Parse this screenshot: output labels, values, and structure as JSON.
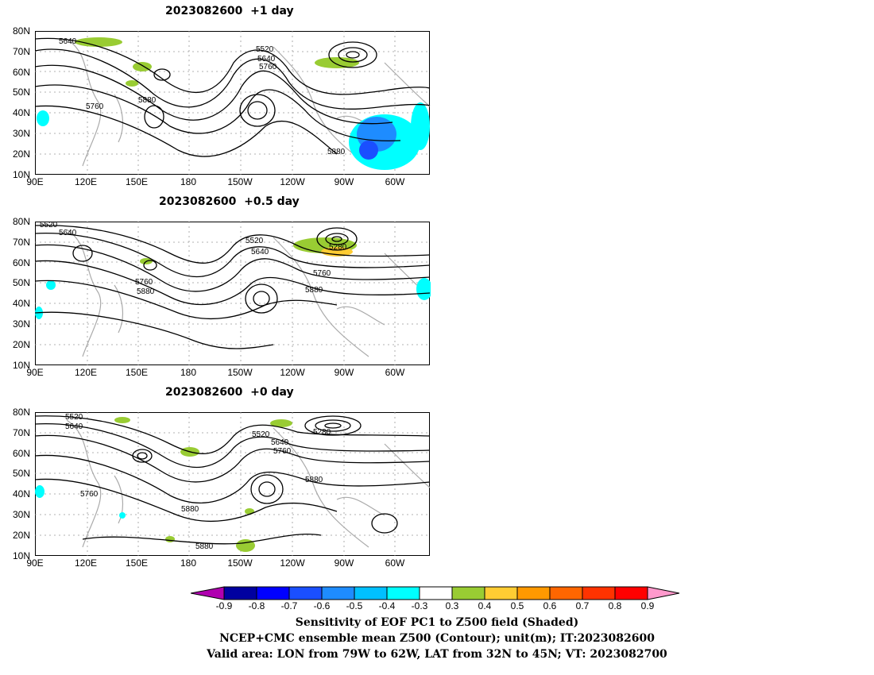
{
  "panels": [
    {
      "title": "2023082600  +1 day"
    },
    {
      "title": "2023082600  +0.5 day"
    },
    {
      "title": "2023082600  +0 day"
    }
  ],
  "lat_labels": [
    "80N",
    "70N",
    "60N",
    "50N",
    "40N",
    "30N",
    "20N",
    "10N"
  ],
  "lon_labels": [
    "90E",
    "120E",
    "150E",
    "180",
    "150W",
    "120W",
    "90W",
    "60W"
  ],
  "contour_labels": {
    "p1": [
      "5640",
      "5520",
      "5640",
      "5760",
      "5760",
      "5880",
      "5880"
    ],
    "p2": [
      "5520",
      "5640",
      "5520",
      "5640",
      "5280",
      "5760",
      "5880",
      "5760",
      "5880"
    ],
    "p3": [
      "5520",
      "5640",
      "5520",
      "5280",
      "5640",
      "5760",
      "5760",
      "5880",
      "5880",
      "5880"
    ]
  },
  "colorbar": {
    "ticks": [
      "-0.9",
      "-0.8",
      "-0.7",
      "-0.6",
      "-0.5",
      "-0.4",
      "-0.3",
      "0.3",
      "0.4",
      "0.5",
      "0.6",
      "0.7",
      "0.8",
      "0.9"
    ],
    "colors": [
      "#b000b0",
      "#0000a0",
      "#0000ff",
      "#1a4fff",
      "#1e8cff",
      "#00c0ff",
      "#00ffff",
      "#ffffff",
      "#99cc33",
      "#ffcc33",
      "#ff9900",
      "#ff6600",
      "#ff3300",
      "#ff0000",
      "#ff99cc"
    ]
  },
  "caption": {
    "line1": "Sensitivity of EOF PC1 to Z500 field (Shaded)",
    "line2": "NCEP+CMC ensemble mean Z500 (Contour); unit(m); IT:2023082600",
    "line3": "Valid area: LON from 79W to 62W, LAT from 32N to 45N; VT: 2023082700"
  }
}
